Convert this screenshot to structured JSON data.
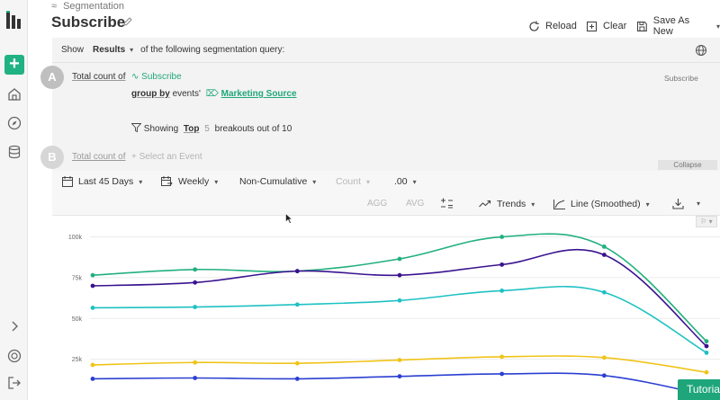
{
  "header": {
    "breadcrumb": "Segmentation",
    "title": "Subscribe",
    "buttons": {
      "reload": "Reload",
      "clear": "Clear",
      "save_as_new": "Save As New"
    }
  },
  "query": {
    "show_label": "Show",
    "show_value": "Results",
    "show_suffix": "of the following segmentation query:",
    "a": {
      "letter": "A",
      "prefix": "Total count of",
      "event": "Subscribe",
      "type_label": "Subscribe",
      "group_by_label": "group by",
      "group_by_prefix": "events'",
      "group_by_value": "Marketing Source",
      "showing_label": "Showing",
      "showing_mode": "Top",
      "showing_count": "5",
      "showing_suffix": "breakouts out of 10"
    },
    "b": {
      "letter": "B",
      "prefix": "Total count of",
      "placeholder": "Select an Event"
    },
    "collapse_label": "Collapse"
  },
  "toolbar": {
    "date_range": "Last 45 Days",
    "interval": "Weekly",
    "cumulative": "Non-Cumulative",
    "measure": "Count",
    "decimals": ".00",
    "agg": "AGG",
    "avg": "AVG",
    "trends": "Trends",
    "chart_type": "Line (Smoothed)"
  },
  "chart_data": {
    "type": "line",
    "smoothed": true,
    "x": [
      0,
      1,
      2,
      3,
      4,
      5,
      6
    ],
    "ylim": [
      0,
      108000
    ],
    "yticks": [
      {
        "value": 25000,
        "label": "25k"
      },
      {
        "value": 50000,
        "label": "50k"
      },
      {
        "value": 75000,
        "label": "75k"
      },
      {
        "value": 100000,
        "label": "100k"
      }
    ],
    "grid": true,
    "series": [
      {
        "color": "#22b07d",
        "values": [
          76500,
          80000,
          79000,
          86500,
          100000,
          94000,
          36000
        ]
      },
      {
        "color": "#3a138f",
        "values": [
          70000,
          72000,
          79000,
          76500,
          83000,
          89000,
          33000
        ]
      },
      {
        "color": "#1fc1c3",
        "values": [
          56500,
          57000,
          58500,
          61000,
          67000,
          66000,
          29000
        ]
      },
      {
        "color": "#f0c419",
        "values": [
          21500,
          23000,
          22500,
          24500,
          26500,
          26000,
          17000
        ]
      },
      {
        "color": "#2b3fd1",
        "values": [
          13000,
          13500,
          13000,
          14500,
          16000,
          15000,
          3000
        ]
      }
    ]
  },
  "misc": {
    "tutorial": "Tutorial",
    "flag_label": "⚐"
  }
}
